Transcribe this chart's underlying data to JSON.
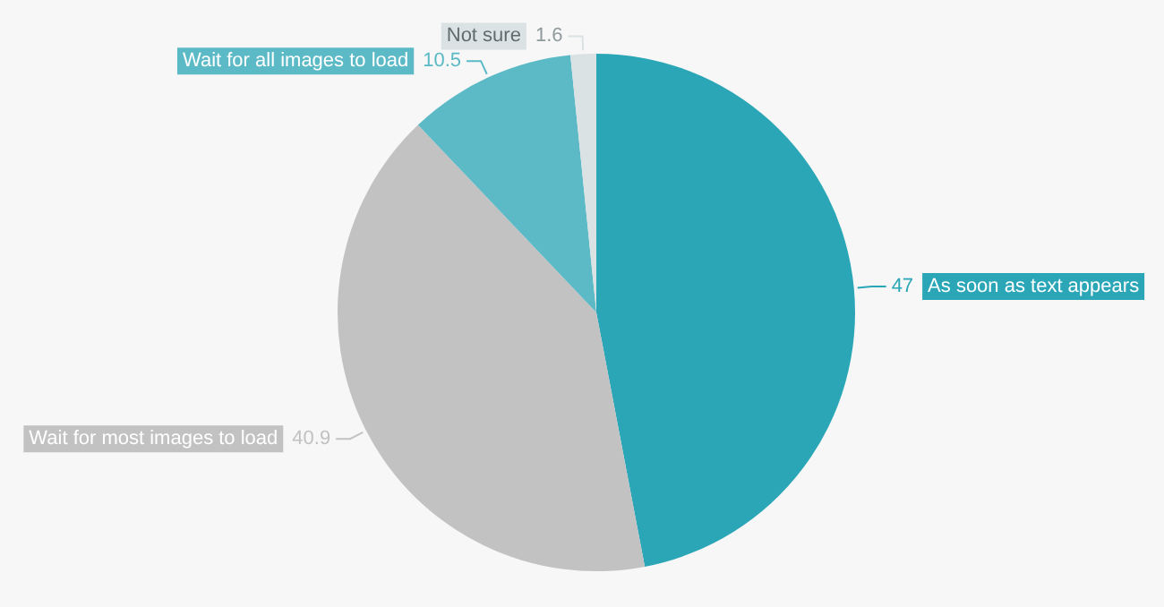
{
  "chart_data": {
    "type": "pie",
    "categories": [
      "As soon as text appears",
      "Wait for most images to load",
      "Wait for all images to load",
      "Not sure"
    ],
    "values": [
      47,
      40.9,
      10.5,
      1.6
    ],
    "colors": [
      "#2ba6b7",
      "#c2c2c2",
      "#5bbac6",
      "#dbe2e3"
    ],
    "data_labels": true,
    "legend": false
  }
}
